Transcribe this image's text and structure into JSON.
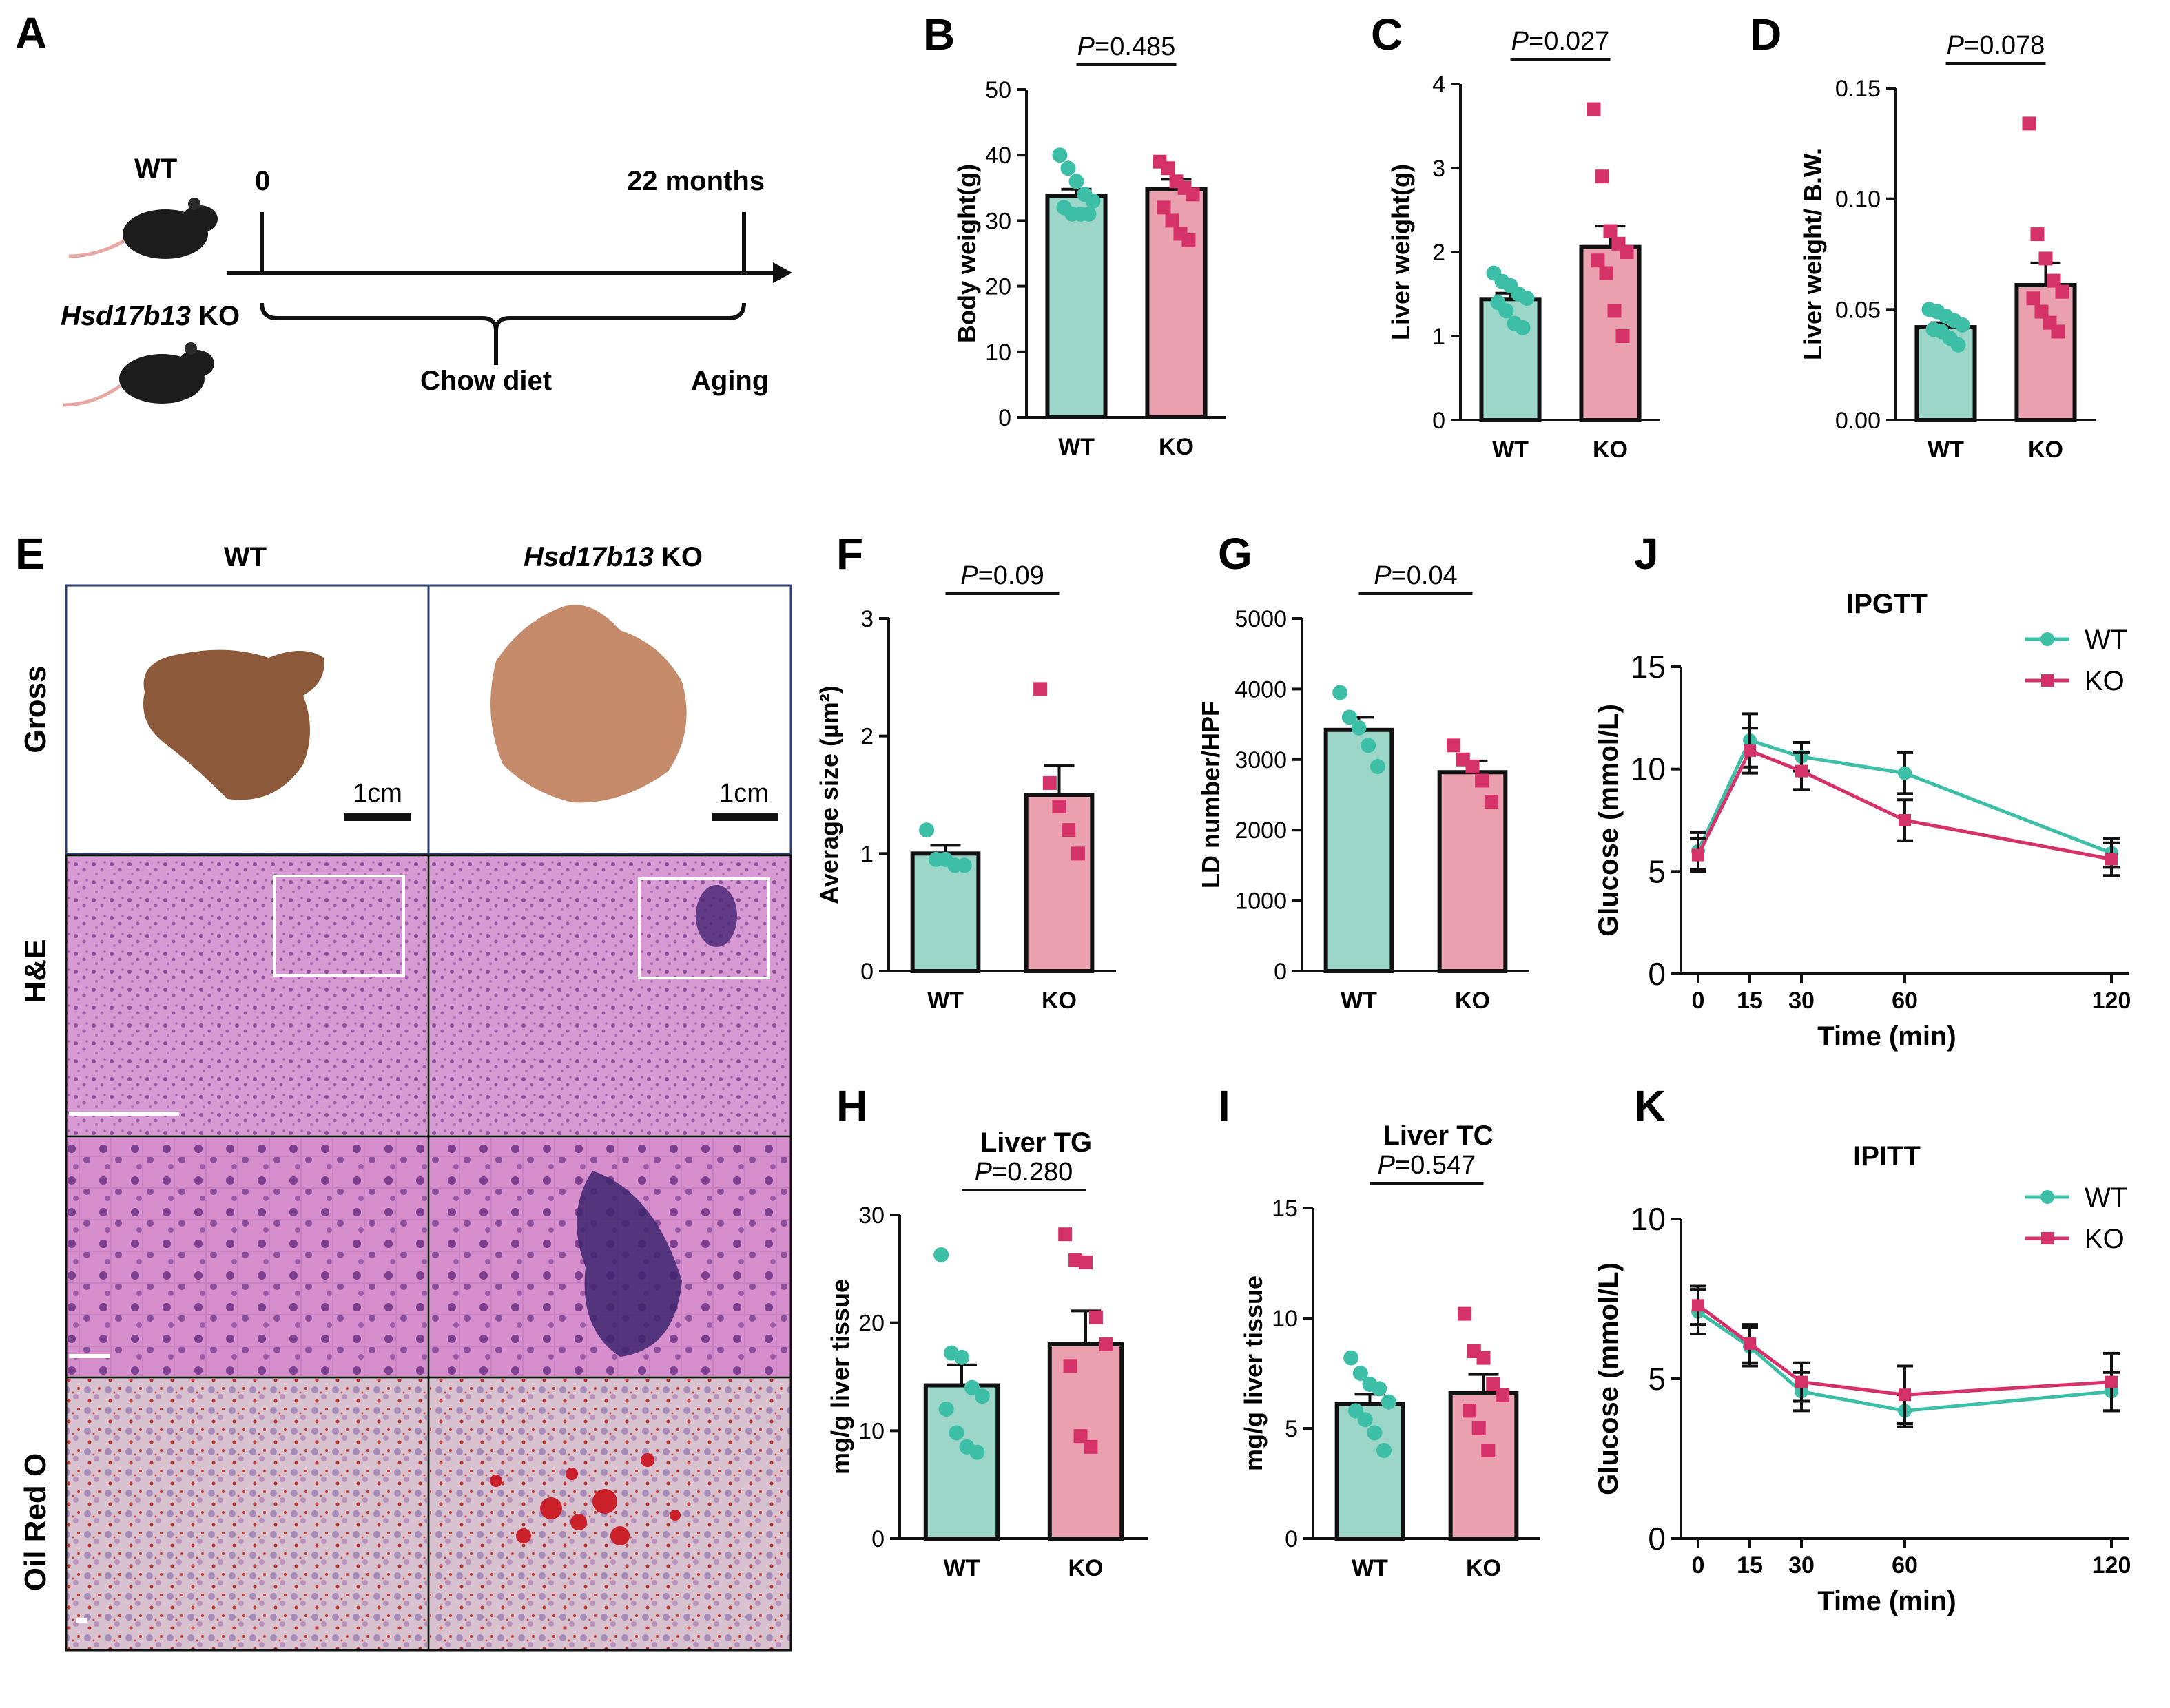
{
  "colors": {
    "wt": "#3dbfa7",
    "wt_fill": "#9bd6c8",
    "ko": "#d6326a",
    "ko_fill": "#eaa0ae"
  },
  "panel_labels": [
    "A",
    "B",
    "C",
    "D",
    "E",
    "F",
    "G",
    "H",
    "I",
    "J",
    "K"
  ],
  "schematic": {
    "wt_label": "WT",
    "ko_label_italic": "Hsd17b13",
    "ko_label_suffix": " KO",
    "start_label": "0",
    "end_label": "22 months",
    "diet_label": "Chow diet",
    "aging_label": "Aging"
  },
  "histology": {
    "col_wt": "WT",
    "col_ko_italic": "Hsd17b13",
    "col_ko_suffix": " KO",
    "rows": [
      "Gross",
      "H&E",
      "Oil Red O"
    ],
    "scale_left": "1cm",
    "scale_right": "1cm"
  },
  "chart_data": [
    {
      "id": "B",
      "type": "bar",
      "categories": [
        "WT",
        "KO"
      ],
      "ylabel": "Body weight(g)",
      "ylim": [
        0,
        50
      ],
      "yticks": [
        0,
        10,
        20,
        30,
        40,
        50
      ],
      "tick_labels": [
        "0",
        "10",
        "20",
        "30",
        "40",
        "50"
      ],
      "means": [
        33.8,
        34.8
      ],
      "sem": [
        1.0,
        1.5
      ],
      "points": [
        [
          40,
          38,
          36,
          34,
          33,
          32,
          31,
          31,
          31
        ],
        [
          39,
          38,
          36,
          35,
          34,
          32,
          30,
          28,
          27
        ]
      ],
      "p_prefix": "P",
      "p_value": "=0.485"
    },
    {
      "id": "C",
      "type": "bar",
      "categories": [
        "WT",
        "KO"
      ],
      "ylabel": "Liver weight(g)",
      "ylim": [
        0,
        4
      ],
      "yticks": [
        0,
        1,
        2,
        3,
        4
      ],
      "tick_labels": [
        "0",
        "1",
        "2",
        "3",
        "4"
      ],
      "means": [
        1.44,
        2.06
      ],
      "sem": [
        0.07,
        0.25
      ],
      "points": [
        [
          1.75,
          1.65,
          1.6,
          1.5,
          1.45,
          1.4,
          1.3,
          1.15,
          1.1
        ],
        [
          3.7,
          2.9,
          2.25,
          2.1,
          2.0,
          1.9,
          1.75,
          1.3,
          1.0
        ]
      ],
      "p_prefix": "P",
      "p_value": "=0.027"
    },
    {
      "id": "D",
      "type": "bar",
      "categories": [
        "WT",
        "KO"
      ],
      "ylabel": "Liver weight/ B.W.",
      "ylim": [
        0,
        0.15
      ],
      "yticks": [
        0,
        0.05,
        0.1,
        0.15
      ],
      "tick_labels": [
        "0.00",
        "0.05",
        "0.10",
        "0.15"
      ],
      "means": [
        0.042,
        0.061
      ],
      "sem": [
        0.002,
        0.01
      ],
      "points": [
        [
          0.05,
          0.049,
          0.047,
          0.045,
          0.043,
          0.041,
          0.04,
          0.037,
          0.034
        ],
        [
          0.134,
          0.084,
          0.073,
          0.063,
          0.058,
          0.055,
          0.049,
          0.044,
          0.04
        ]
      ],
      "p_prefix": "P",
      "p_value": "=0.078"
    },
    {
      "id": "F",
      "type": "bar",
      "categories": [
        "WT",
        "KO"
      ],
      "ylabel": "Average size (µm²)",
      "ylim": [
        0,
        3
      ],
      "yticks": [
        0,
        1,
        2,
        3
      ],
      "tick_labels": [
        "0",
        "1",
        "2",
        "3"
      ],
      "means": [
        1.0,
        1.5
      ],
      "sem": [
        0.07,
        0.25
      ],
      "points": [
        [
          1.2,
          0.95,
          0.95,
          0.9,
          0.9
        ],
        [
          2.4,
          1.6,
          1.4,
          1.2,
          1.0
        ]
      ],
      "p_prefix": "P",
      "p_value": "=0.09"
    },
    {
      "id": "G",
      "type": "bar",
      "categories": [
        "WT",
        "KO"
      ],
      "ylabel": "LD number/HPF",
      "ylim": [
        0,
        5000
      ],
      "yticks": [
        0,
        1000,
        2000,
        3000,
        4000,
        5000
      ],
      "tick_labels": [
        "0",
        "1000",
        "2000",
        "3000",
        "4000",
        "5000"
      ],
      "means": [
        3420,
        2820
      ],
      "sem": [
        180,
        160
      ],
      "points": [
        [
          3950,
          3600,
          3450,
          3200,
          2900
        ],
        [
          3200,
          3000,
          2900,
          2700,
          2400
        ]
      ],
      "p_prefix": "P",
      "p_value": "=0.04"
    },
    {
      "id": "H",
      "type": "bar",
      "title": "Liver TG",
      "categories": [
        "WT",
        "KO"
      ],
      "ylabel": "mg/g liver tissue",
      "ylim": [
        0,
        30
      ],
      "yticks": [
        0,
        10,
        20,
        30
      ],
      "tick_labels": [
        "0",
        "10",
        "20",
        "30"
      ],
      "means": [
        14.2,
        18.0
      ],
      "sem": [
        1.9,
        3.1
      ],
      "points": [
        [
          26.3,
          17.2,
          16.8,
          14.0,
          13.2,
          12.0,
          9.8,
          8.5,
          8.0
        ],
        [
          28.2,
          25.8,
          25.6,
          20.5,
          18.0,
          16.0,
          9.5,
          8.5
        ]
      ],
      "p_prefix": "P",
      "p_value": "=0.280"
    },
    {
      "id": "I",
      "type": "bar",
      "title": "Liver TC",
      "categories": [
        "WT",
        "KO"
      ],
      "ylabel": "mg/g liver tissue",
      "ylim": [
        0,
        15
      ],
      "yticks": [
        0,
        5,
        10,
        15
      ],
      "tick_labels": [
        "0",
        "5",
        "10",
        "15"
      ],
      "means": [
        6.1,
        6.6
      ],
      "sem": [
        0.45,
        0.85
      ],
      "points": [
        [
          8.2,
          7.5,
          7.0,
          6.8,
          6.2,
          5.8,
          5.4,
          4.8,
          4.0
        ],
        [
          10.2,
          8.5,
          8.2,
          7.0,
          6.5,
          5.8,
          5.0,
          4.0
        ]
      ],
      "p_prefix": "P",
      "p_value": "=0.547"
    },
    {
      "id": "J",
      "type": "line",
      "title": "IPGTT",
      "xlabel": "Time (min)",
      "ylabel": "Glucose (mmol/L)",
      "x": [
        0,
        15,
        30,
        60,
        120
      ],
      "xlim": [
        -5,
        125
      ],
      "ylim": [
        0,
        15
      ],
      "xticks": [
        0,
        15,
        30,
        60,
        120
      ],
      "xtick_labels": [
        "0",
        "15",
        "30",
        "60",
        "120"
      ],
      "yticks": [
        0,
        5,
        10,
        15
      ],
      "ytick_labels": [
        "0",
        "5",
        "10",
        "15"
      ],
      "series": [
        {
          "name": "WT",
          "values": [
            6.0,
            11.4,
            10.6,
            9.8,
            5.9
          ],
          "err": [
            0.9,
            1.3,
            0.7,
            1.0,
            0.7
          ]
        },
        {
          "name": "KO",
          "values": [
            5.8,
            10.9,
            9.9,
            7.5,
            5.6
          ],
          "err": [
            0.8,
            1.1,
            0.9,
            1.0,
            0.8
          ]
        }
      ]
    },
    {
      "id": "K",
      "type": "line",
      "title": "IPITT",
      "xlabel": "Time (min)",
      "ylabel": "Glucose (mmol/L)",
      "x": [
        0,
        15,
        30,
        60,
        120
      ],
      "xlim": [
        -5,
        125
      ],
      "ylim": [
        0,
        10
      ],
      "xticks": [
        0,
        15,
        30,
        60,
        120
      ],
      "xtick_labels": [
        "0",
        "15",
        "30",
        "60",
        "120"
      ],
      "yticks": [
        0,
        5,
        10
      ],
      "ytick_labels": [
        "0",
        "5",
        "10"
      ],
      "series": [
        {
          "name": "WT",
          "values": [
            7.1,
            6.0,
            4.6,
            4.0,
            4.6
          ],
          "err": [
            0.7,
            0.6,
            0.6,
            0.5,
            0.6
          ]
        },
        {
          "name": "KO",
          "values": [
            7.3,
            6.1,
            4.9,
            4.5,
            4.9
          ],
          "err": [
            0.6,
            0.6,
            0.6,
            0.9,
            0.9
          ]
        }
      ]
    }
  ]
}
